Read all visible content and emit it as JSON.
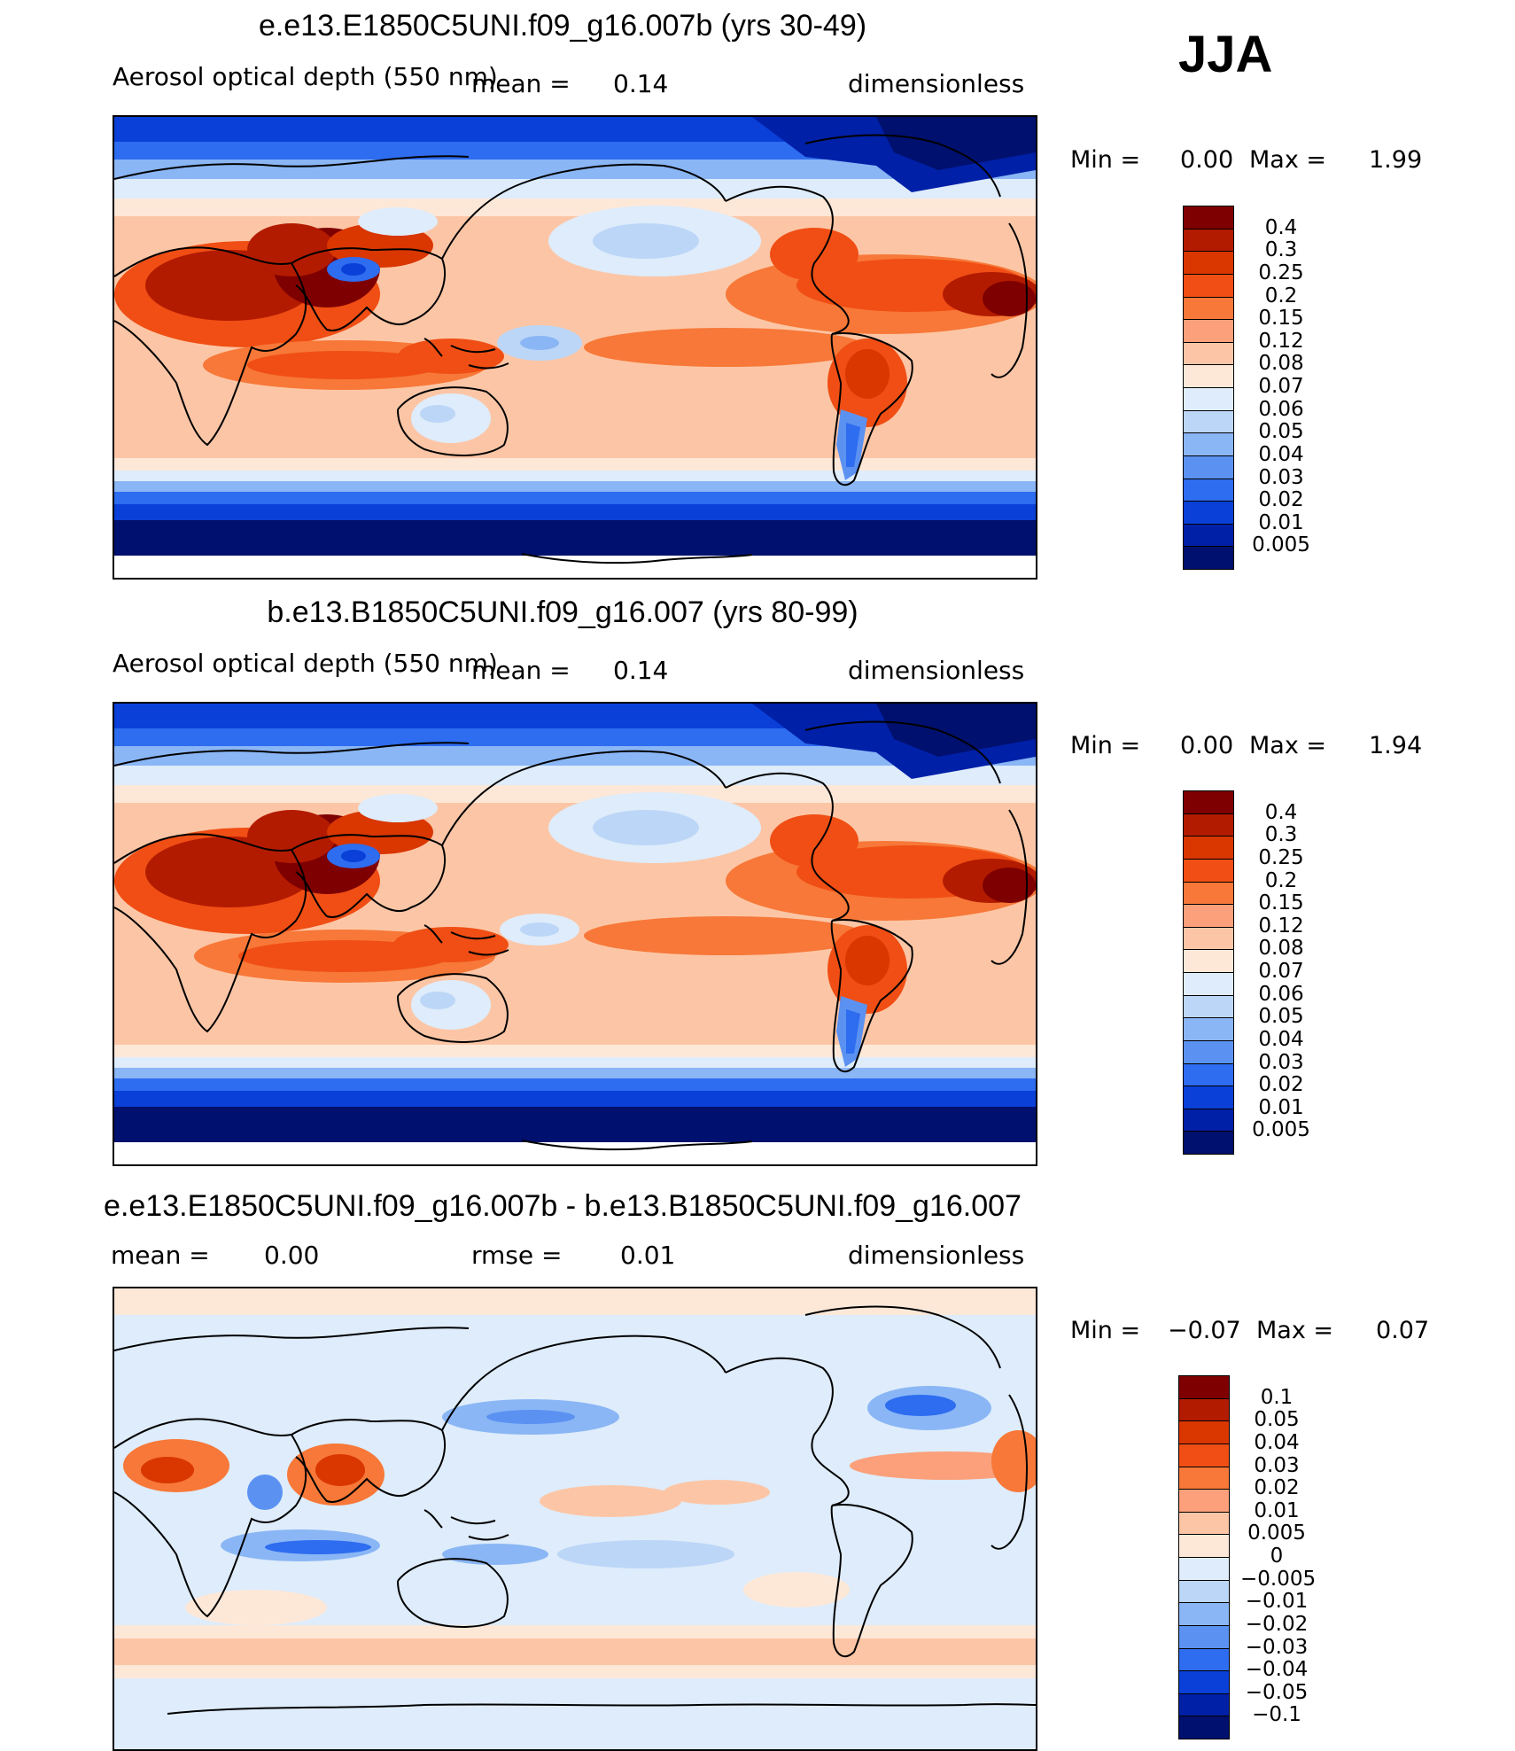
{
  "season": "JJA",
  "panels": [
    {
      "id": "p1",
      "title": "e.e13.E1850C5UNI.f09_g16.007b (yrs 30-49)",
      "variable": "Aerosol optical depth (550 nm)",
      "mean_label": "mean =",
      "mean_value": "0.14",
      "units": "dimensionless",
      "min_label": "Min =",
      "min_value": "0.00",
      "max_label": "Max =",
      "max_value": "1.99",
      "colorbar": {
        "labels": [
          "0.4",
          "0.3",
          "0.25",
          "0.2",
          "0.15",
          "0.12",
          "0.08",
          "0.07",
          "0.06",
          "0.05",
          "0.04",
          "0.03",
          "0.02",
          "0.01",
          "0.005"
        ],
        "colors": [
          "#7f0000",
          "#b31b00",
          "#d93600",
          "#f04e14",
          "#f77838",
          "#fba07a",
          "#fcc6a6",
          "#fde8d8",
          "#deecfb",
          "#bcd6f7",
          "#8ab6f5",
          "#5b92f2",
          "#2e6cf0",
          "#0a40d8",
          "#0020a8",
          "#00106e"
        ]
      }
    },
    {
      "id": "p2",
      "title": "b.e13.B1850C5UNI.f09_g16.007 (yrs 80-99)",
      "variable": "Aerosol optical depth (550 nm)",
      "mean_label": "mean =",
      "mean_value": "0.14",
      "units": "dimensionless",
      "min_label": "Min =",
      "min_value": "0.00",
      "max_label": "Max =",
      "max_value": "1.94",
      "colorbar": {
        "labels": [
          "0.4",
          "0.3",
          "0.25",
          "0.2",
          "0.15",
          "0.12",
          "0.08",
          "0.07",
          "0.06",
          "0.05",
          "0.04",
          "0.03",
          "0.02",
          "0.01",
          "0.005"
        ],
        "colors": [
          "#7f0000",
          "#b31b00",
          "#d93600",
          "#f04e14",
          "#f77838",
          "#fba07a",
          "#fcc6a6",
          "#fde8d8",
          "#deecfb",
          "#bcd6f7",
          "#8ab6f5",
          "#5b92f2",
          "#2e6cf0",
          "#0a40d8",
          "#0020a8",
          "#00106e"
        ]
      }
    },
    {
      "id": "p3",
      "title": "e.e13.E1850C5UNI.f09_g16.007b - b.e13.B1850C5UNI.f09_g16.007",
      "mean_label": "mean =",
      "mean_value": "0.00",
      "rmse_label": "rmse =",
      "rmse_value": "0.01",
      "units": "dimensionless",
      "min_label": "Min =",
      "min_value": "−0.07",
      "max_label": "Max =",
      "max_value": "0.07",
      "colorbar": {
        "labels": [
          "0.1",
          "0.05",
          "0.04",
          "0.03",
          "0.02",
          "0.01",
          "0.005",
          "0",
          "−0.005",
          "−0.01",
          "−0.02",
          "−0.03",
          "−0.04",
          "−0.05",
          "−0.1"
        ],
        "colors": [
          "#7f0000",
          "#b31b00",
          "#d93600",
          "#f04e14",
          "#f77838",
          "#fba07a",
          "#fcc6a6",
          "#fde8d8",
          "#deecfb",
          "#bcd6f7",
          "#8ab6f5",
          "#5b92f2",
          "#2e6cf0",
          "#0a40d8",
          "#0020a8",
          "#00106e"
        ]
      }
    }
  ]
}
